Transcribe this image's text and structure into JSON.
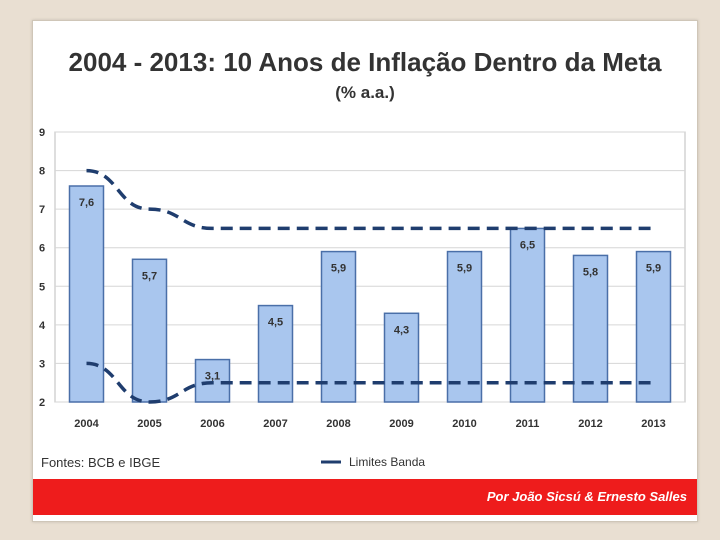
{
  "slide": {
    "title": "2004 - 2013: 10 Anos de Inflação Dentro da Meta",
    "subtitle": "(% a.a.)",
    "sources": "Fontes: BCB e IBGE",
    "credit": "Por João Sicsú & Ernesto Salles"
  },
  "colors": {
    "bar_fill": "#a9c6ee",
    "bar_stroke": "#4a6fa8",
    "band_line": "#1f3d6e",
    "footer": "#ee1c1c"
  },
  "chart_data": {
    "type": "bar",
    "categories": [
      "2004",
      "2005",
      "2006",
      "2007",
      "2008",
      "2009",
      "2010",
      "2011",
      "2012",
      "2013"
    ],
    "series": [
      {
        "values": [
          7.6,
          5.7,
          3.1,
          4.5,
          5.9,
          4.3,
          5.9,
          6.5,
          5.8,
          5.9
        ]
      }
    ],
    "data_labels": [
      "7,6",
      "5,7",
      "3,1",
      "4,5",
      "5,9",
      "4,3",
      "5,9",
      "6,5",
      "5,8",
      "5,9"
    ],
    "band_upper": [
      8.0,
      7.0,
      6.5,
      6.5,
      6.5,
      6.5,
      6.5,
      6.5,
      6.5,
      6.5
    ],
    "band_lower": [
      3.0,
      2.0,
      2.5,
      2.5,
      2.5,
      2.5,
      2.5,
      2.5,
      2.5,
      2.5
    ],
    "ylim": [
      2,
      9
    ],
    "yticks": [
      2,
      3,
      4,
      5,
      6,
      7,
      8,
      9
    ],
    "grid": true,
    "legend": {
      "label": "Limites Banda",
      "position": "bottom"
    }
  }
}
